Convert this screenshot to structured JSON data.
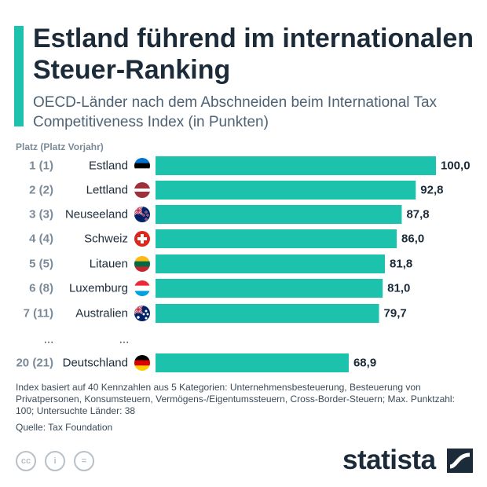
{
  "header": {
    "title": "Estland führend im internationalen Steuer-Ranking",
    "subtitle": "OECD-Länder nach dem Abschneiden beim International Tax Competitiveness Index (in Punkten)",
    "column_label": "Platz (Platz Vorjahr)"
  },
  "chart_data": {
    "type": "bar",
    "orientation": "horizontal",
    "ranks": [
      "1 (1)",
      "2 (2)",
      "3 (3)",
      "4 (4)",
      "5 (5)",
      "6 (8)",
      "7 (11)",
      "20 (21)"
    ],
    "categories": [
      "Estland",
      "Lettland",
      "Neuseeland",
      "Schweiz",
      "Litauen",
      "Luxemburg",
      "Australien",
      "Deutschland"
    ],
    "values": [
      100.0,
      92.8,
      87.8,
      86.0,
      81.8,
      81.0,
      79.7,
      68.9
    ],
    "value_labels": [
      "100,0",
      "92,8",
      "87,8",
      "86,0",
      "81,8",
      "81,0",
      "79,7",
      "68,9"
    ],
    "flags": [
      "flag-estonia",
      "flag-latvia",
      "flag-new-zealand",
      "flag-switzerland",
      "flag-lithuania",
      "flag-luxembourg",
      "flag-australia",
      "flag-germany"
    ],
    "gap_marker": "...",
    "bar_color": "#1dc2ad",
    "xlim": [
      0,
      100
    ]
  },
  "footer": {
    "note": "Index basiert auf 40 Kennzahlen aus 5 Kategorien: Unternehmensbesteuerung, Besteuerung von Privatpersonen, Konsumsteuern, Vermögens-/Eigentumssteuern, Cross-Border-Steuern; Max. Punktzahl: 100; Untersuchte Länder: 38",
    "source": "Quelle: Tax Foundation",
    "license_icons": [
      "cc-icon",
      "attribution-icon",
      "no-derivatives-icon"
    ],
    "license_glyphs": [
      "cc",
      "i",
      "="
    ],
    "brand": "statista"
  }
}
